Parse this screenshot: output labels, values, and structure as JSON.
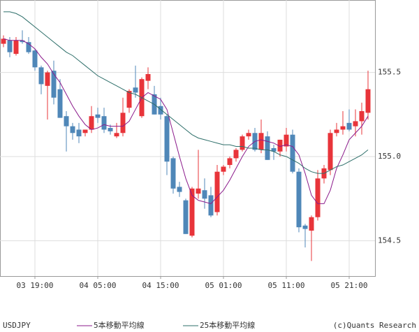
{
  "chart_data": {
    "type": "candlestick",
    "symbol": "USDJPY",
    "credit": "(c)Quants Research",
    "categories": [
      null,
      null,
      null,
      null,
      null,
      "03 19:00",
      null,
      null,
      null,
      null,
      null,
      null,
      null,
      null,
      null,
      "04 05:00",
      null,
      null,
      null,
      null,
      null,
      null,
      null,
      null,
      null,
      "04 15:00",
      null,
      null,
      null,
      null,
      null,
      null,
      null,
      null,
      null,
      "05 01:00",
      null,
      null,
      null,
      null,
      null,
      null,
      null,
      null,
      null,
      "05 11:00",
      null,
      null,
      null,
      null,
      null,
      null,
      null,
      null,
      null,
      "05 21:00",
      null,
      null,
      null
    ],
    "open": [
      155.67,
      155.69,
      155.61,
      155.69,
      155.68,
      155.63,
      155.53,
      155.42,
      155.51,
      155.4,
      155.24,
      155.18,
      155.16,
      155.14,
      155.16,
      155.25,
      155.24,
      155.17,
      155.12,
      155.14,
      155.29,
      155.41,
      155.24,
      155.45,
      155.37,
      155.3,
      155.24,
      154.99,
      154.82,
      154.74,
      154.53,
      154.78,
      154.8,
      154.77,
      154.67,
      154.91,
      154.95,
      154.99,
      155.04,
      155.12,
      155.14,
      155.04,
      155.12,
      155.05,
      155.03,
      155.06,
      155.13,
      154.91,
      154.59,
      154.56,
      154.64,
      154.87,
      154.92,
      155.14,
      155.16,
      155.2,
      155.18,
      155.21,
      155.26
    ],
    "high": [
      155.72,
      155.71,
      155.71,
      155.75,
      155.71,
      155.64,
      155.54,
      155.51,
      155.57,
      155.46,
      155.27,
      155.2,
      155.2,
      155.16,
      155.3,
      155.29,
      155.29,
      155.19,
      155.2,
      155.35,
      155.4,
      155.54,
      155.47,
      155.53,
      155.42,
      155.35,
      155.25,
      155.0,
      154.85,
      154.75,
      154.82,
      155.04,
      154.87,
      154.82,
      154.95,
      154.95,
      155.0,
      155.05,
      155.13,
      155.16,
      155.17,
      155.22,
      155.15,
      155.07,
      155.1,
      155.17,
      155.16,
      154.93,
      154.6,
      154.65,
      154.92,
      154.95,
      155.16,
      155.2,
      155.27,
      155.28,
      155.28,
      155.32,
      155.51
    ],
    "low": [
      155.65,
      155.59,
      155.6,
      155.67,
      155.61,
      155.51,
      155.37,
      155.22,
      155.31,
      155.23,
      155.03,
      155.1,
      155.08,
      155.12,
      155.14,
      155.2,
      155.14,
      155.13,
      155.11,
      155.12,
      155.26,
      155.35,
      155.23,
      155.4,
      155.25,
      155.22,
      154.89,
      154.78,
      154.76,
      154.54,
      154.52,
      154.75,
      154.69,
      154.64,
      154.65,
      154.89,
      154.93,
      154.97,
      155.03,
      155.1,
      155.03,
      155.02,
      154.98,
      154.98,
      155.0,
      155.03,
      154.9,
      154.55,
      154.46,
      154.38,
      154.62,
      154.84,
      154.89,
      155.12,
      155.13,
      155.15,
      155.12,
      155.13,
      155.22
    ],
    "close": [
      155.7,
      155.62,
      155.69,
      155.68,
      155.62,
      155.53,
      155.43,
      155.5,
      155.35,
      155.23,
      155.18,
      155.14,
      155.12,
      155.16,
      155.24,
      155.23,
      155.16,
      155.15,
      155.14,
      155.26,
      155.39,
      155.38,
      155.46,
      155.49,
      155.25,
      155.25,
      154.97,
      154.81,
      154.79,
      154.54,
      154.81,
      154.81,
      154.75,
      154.65,
      154.91,
      154.94,
      154.99,
      155.04,
      155.12,
      155.14,
      155.04,
      155.14,
      154.98,
      155.03,
      155.1,
      155.13,
      154.91,
      154.58,
      154.57,
      154.64,
      154.87,
      154.93,
      155.14,
      155.16,
      155.18,
      155.16,
      155.21,
      155.27,
      155.4
    ],
    "up_color": "#e8343a",
    "down_color": "#4f87b8",
    "series": [
      {
        "name": "5本移動平均線",
        "color": "#8b1a8b",
        "values": [
          155.7,
          155.69,
          155.69,
          155.69,
          155.67,
          155.64,
          155.59,
          155.55,
          155.49,
          155.44,
          155.37,
          155.3,
          155.24,
          155.19,
          155.16,
          155.17,
          155.19,
          155.18,
          155.18,
          155.18,
          155.21,
          155.28,
          155.35,
          155.38,
          155.36,
          155.34,
          155.28,
          155.14,
          155.0,
          154.87,
          154.77,
          154.74,
          154.73,
          154.72,
          154.76,
          154.8,
          154.86,
          154.93,
          155.0,
          155.06,
          155.09,
          155.1,
          155.09,
          155.08,
          155.06,
          155.07,
          155.06,
          155.01,
          154.9,
          154.77,
          154.72,
          154.72,
          154.8,
          154.93,
          155.01,
          155.1,
          155.14,
          155.18,
          155.24
        ]
      },
      {
        "name": "25本移動平均線",
        "color": "#2e6f6a",
        "values": [
          155.86,
          155.86,
          155.85,
          155.83,
          155.8,
          155.77,
          155.74,
          155.71,
          155.68,
          155.65,
          155.62,
          155.6,
          155.57,
          155.54,
          155.51,
          155.48,
          155.46,
          155.44,
          155.42,
          155.4,
          155.38,
          155.37,
          155.35,
          155.33,
          155.31,
          155.28,
          155.25,
          155.22,
          155.19,
          155.16,
          155.13,
          155.11,
          155.1,
          155.09,
          155.08,
          155.07,
          155.07,
          155.06,
          155.06,
          155.05,
          155.05,
          155.04,
          155.04,
          155.03,
          155.01,
          155.0,
          154.98,
          154.96,
          154.93,
          154.91,
          154.9,
          154.9,
          154.92,
          154.94,
          154.95,
          154.97,
          154.99,
          155.01,
          155.04
        ]
      }
    ],
    "ylim": [
      154.29,
      155.93
    ],
    "yticks": [
      154.5,
      {
        "value": 155,
        "label": "155.0"
      },
      155.5
    ],
    "grid": true
  }
}
